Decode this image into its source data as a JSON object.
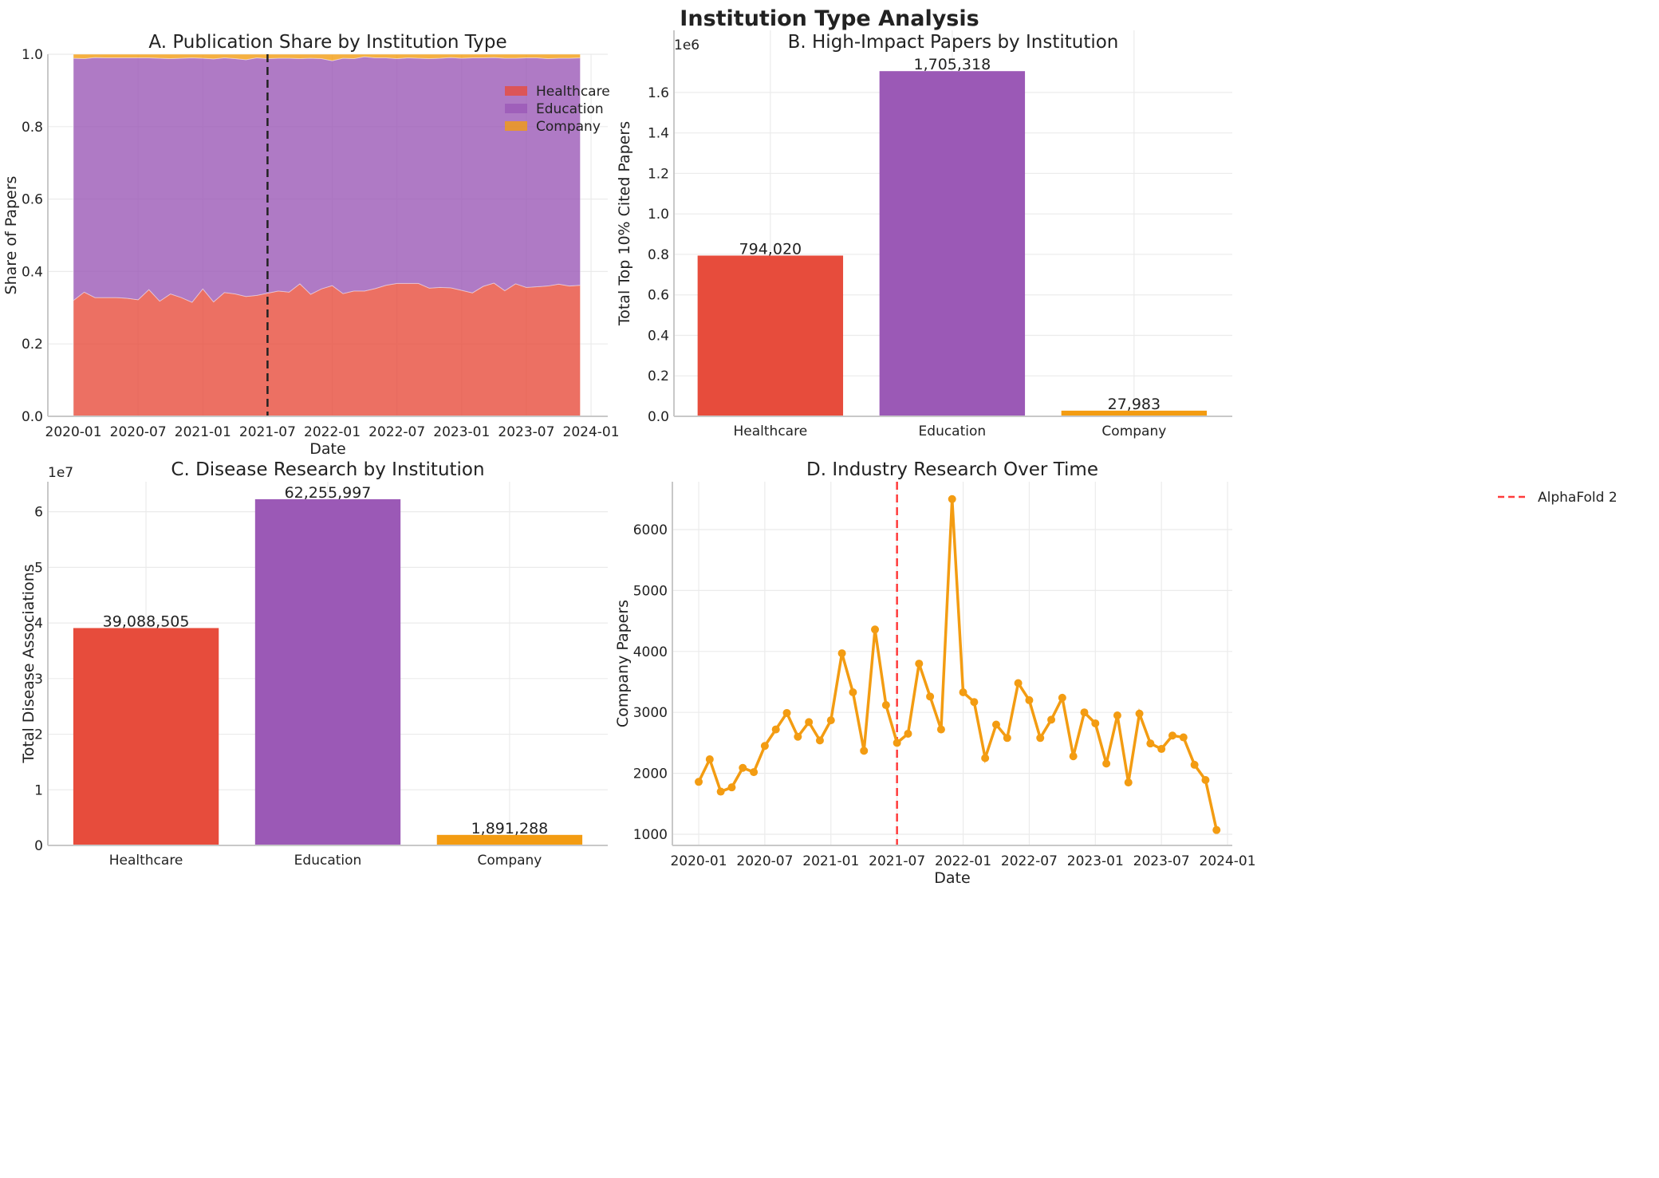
{
  "figure_title": "Institution Type Analysis",
  "colors": {
    "Healthcare": "#e74c3c",
    "Education": "#9b59b6",
    "Company": "#f39c12",
    "reference_line": "#ff3b3b"
  },
  "chart_data": [
    {
      "type": "area",
      "stacked": true,
      "title": "A. Publication Share by Institution Type",
      "xlabel": "Date",
      "ylabel": "Share of Papers",
      "ylim": [
        0,
        1.0
      ],
      "yticks": [
        "0.0",
        "0.2",
        "0.4",
        "0.6",
        "0.8",
        "1.0"
      ],
      "xticks": [
        "2020-01",
        "2020-07",
        "2021-01",
        "2021-07",
        "2022-01",
        "2022-07",
        "2023-01",
        "2023-07",
        "2024-01"
      ],
      "x_start": "2020-01",
      "x_end": "2023-12",
      "grid": true,
      "legend_position": "top-right",
      "vline": {
        "x": "2021-07",
        "style": "dashed",
        "color": "#222222"
      },
      "series": [
        {
          "name": "Healthcare",
          "values": [
            0.32,
            0.343,
            0.328,
            0.328,
            0.328,
            0.326,
            0.322,
            0.35,
            0.318,
            0.338,
            0.328,
            0.315,
            0.352,
            0.316,
            0.342,
            0.338,
            0.331,
            0.334,
            0.34,
            0.346,
            0.343,
            0.366,
            0.337,
            0.352,
            0.361,
            0.339,
            0.346,
            0.346,
            0.353,
            0.362,
            0.367,
            0.367,
            0.367,
            0.354,
            0.356,
            0.355,
            0.348,
            0.341,
            0.359,
            0.368,
            0.347,
            0.366,
            0.356,
            0.358,
            0.36,
            0.365,
            0.36,
            0.362
          ]
        },
        {
          "name": "Education",
          "values": [
            0.669,
            0.645,
            0.663,
            0.662,
            0.662,
            0.664,
            0.668,
            0.64,
            0.671,
            0.65,
            0.661,
            0.675,
            0.637,
            0.671,
            0.648,
            0.65,
            0.654,
            0.656,
            0.648,
            0.643,
            0.646,
            0.622,
            0.652,
            0.636,
            0.621,
            0.65,
            0.642,
            0.647,
            0.637,
            0.628,
            0.621,
            0.623,
            0.622,
            0.634,
            0.633,
            0.636,
            0.641,
            0.649,
            0.631,
            0.623,
            0.642,
            0.623,
            0.634,
            0.632,
            0.628,
            0.624,
            0.629,
            0.628
          ]
        },
        {
          "name": "Company",
          "values": [
            0.011,
            0.012,
            0.009,
            0.01,
            0.01,
            0.01,
            0.01,
            0.01,
            0.011,
            0.012,
            0.011,
            0.01,
            0.011,
            0.013,
            0.01,
            0.012,
            0.015,
            0.01,
            0.012,
            0.011,
            0.011,
            0.012,
            0.011,
            0.012,
            0.018,
            0.011,
            0.012,
            0.007,
            0.01,
            0.01,
            0.012,
            0.01,
            0.011,
            0.012,
            0.011,
            0.009,
            0.011,
            0.01,
            0.01,
            0.009,
            0.011,
            0.011,
            0.01,
            0.01,
            0.012,
            0.011,
            0.011,
            0.01
          ]
        }
      ]
    },
    {
      "type": "bar",
      "title": "B. High-Impact Papers by Institution",
      "xlabel": "",
      "ylabel": "Total Top 10% Cited Papers",
      "scale_label": "1e6",
      "ylim": [
        0,
        1907000
      ],
      "yticks": [
        "0.0",
        "0.2",
        "0.4",
        "0.6",
        "0.8",
        "1.0",
        "1.2",
        "1.4",
        "1.6"
      ],
      "grid": true,
      "categories": [
        "Healthcare",
        "Education",
        "Company"
      ],
      "values": [
        794020,
        1705318,
        27983
      ],
      "data_labels": [
        "794,020",
        "1,705,318",
        "27,983"
      ]
    },
    {
      "type": "bar",
      "title": "C. Disease Research by Institution",
      "xlabel": "",
      "ylabel": "Total Disease Associations",
      "scale_label": "1e7",
      "ylim": [
        0,
        65400000
      ],
      "yticks": [
        "0",
        "1",
        "2",
        "3",
        "4",
        "5",
        "6"
      ],
      "grid": true,
      "categories": [
        "Healthcare",
        "Education",
        "Company"
      ],
      "values": [
        39088505,
        62255997,
        1891288
      ],
      "data_labels": [
        "39,088,505",
        "62,255,997",
        "1,891,288"
      ]
    },
    {
      "type": "line",
      "title": "D. Industry Research Over Time",
      "xlabel": "Date",
      "ylabel": "Company Papers",
      "ylim": [
        817,
        6785
      ],
      "yticks": [
        "1000",
        "2000",
        "3000",
        "4000",
        "5000",
        "6000"
      ],
      "xticks": [
        "2020-01",
        "2020-07",
        "2021-01",
        "2021-07",
        "2022-01",
        "2022-07",
        "2023-01",
        "2023-07",
        "2024-01"
      ],
      "x_start": "2020-01",
      "x_end": "2023-12",
      "grid": true,
      "legend_position": "top-right",
      "vline": {
        "x": "2021-07",
        "style": "dashed",
        "label": "AlphaFold 2"
      },
      "series": [
        {
          "values": [
            1860,
            2230,
            1700,
            1770,
            2090,
            2020,
            2450,
            2720,
            2990,
            2600,
            2840,
            2540,
            2870,
            3970,
            3330,
            2370,
            4360,
            3120,
            2500,
            2650,
            3800,
            3260,
            2720,
            6500,
            3330,
            3170,
            2250,
            2800,
            2580,
            3480,
            3200,
            2580,
            2880,
            3240,
            2280,
            3000,
            2820,
            2160,
            2950,
            1850,
            2980,
            2490,
            2400,
            2620,
            2590,
            2140,
            1890,
            1070
          ]
        }
      ]
    }
  ]
}
